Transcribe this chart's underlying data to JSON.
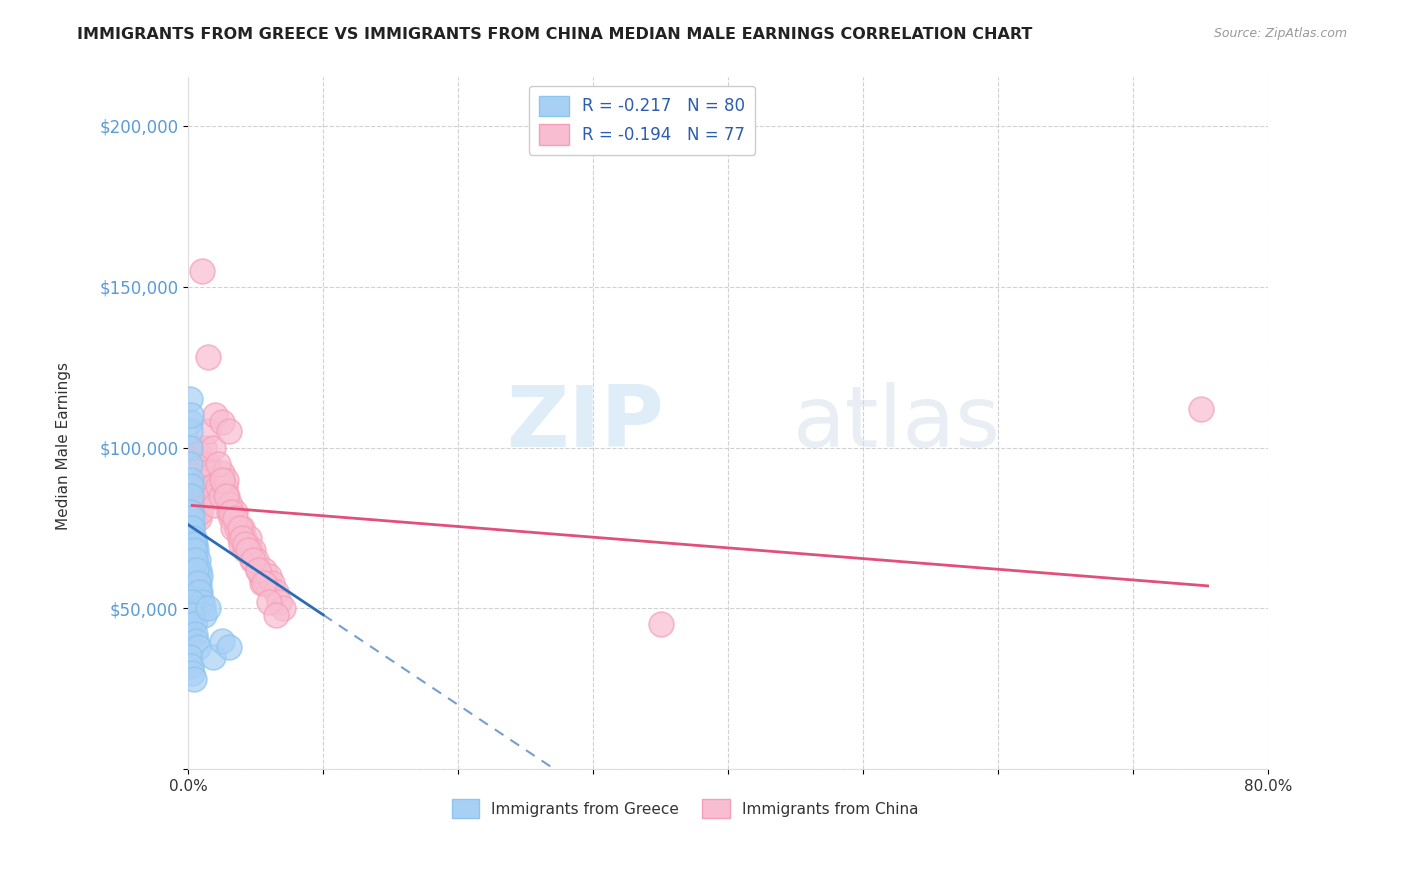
{
  "title": "IMMIGRANTS FROM GREECE VS IMMIGRANTS FROM CHINA MEDIAN MALE EARNINGS CORRELATION CHART",
  "source": "Source: ZipAtlas.com",
  "ylabel": "Median Male Earnings",
  "y_ticks": [
    0,
    50000,
    100000,
    150000,
    200000
  ],
  "y_tick_labels": [
    "",
    "$50,000",
    "$100,000",
    "$150,000",
    "$200,000"
  ],
  "xlim": [
    0.0,
    0.8
  ],
  "ylim": [
    0,
    215000
  ],
  "greece_R": -0.217,
  "greece_N": 80,
  "china_R": -0.194,
  "china_N": 77,
  "greece_color": "#8EC4F0",
  "greece_face_color": "#A8D0F5",
  "china_color": "#F5A0B8",
  "china_face_color": "#F8BDD0",
  "greece_line_color": "#2B6CB8",
  "china_line_color": "#E0507A",
  "watermark_zip": "ZIP",
  "watermark_atlas": "atlas",
  "legend_label_greece": "Immigrants from Greece",
  "legend_label_china": "Immigrants from China",
  "greece_scatter_x": [
    0.0005,
    0.0008,
    0.001,
    0.001,
    0.0012,
    0.0015,
    0.0015,
    0.0015,
    0.002,
    0.002,
    0.002,
    0.002,
    0.0022,
    0.0025,
    0.0025,
    0.003,
    0.003,
    0.003,
    0.003,
    0.0035,
    0.0035,
    0.004,
    0.004,
    0.004,
    0.004,
    0.0045,
    0.005,
    0.005,
    0.005,
    0.005,
    0.006,
    0.006,
    0.006,
    0.007,
    0.007,
    0.007,
    0.008,
    0.008,
    0.009,
    0.009,
    0.001,
    0.0012,
    0.0014,
    0.0016,
    0.0018,
    0.002,
    0.0022,
    0.0024,
    0.003,
    0.003,
    0.0035,
    0.004,
    0.0045,
    0.005,
    0.006,
    0.007,
    0.008,
    0.01,
    0.011,
    0.012,
    0.001,
    0.001,
    0.002,
    0.002,
    0.003,
    0.003,
    0.004,
    0.005,
    0.006,
    0.007,
    0.001,
    0.002,
    0.003,
    0.004,
    0.015,
    0.018,
    0.025,
    0.03,
    0.001,
    0.002
  ],
  "greece_scatter_y": [
    75000,
    80000,
    78000,
    73000,
    70000,
    72000,
    65000,
    68000,
    75000,
    72000,
    68000,
    65000,
    62000,
    70000,
    60000,
    75000,
    70000,
    65000,
    60000,
    68000,
    62000,
    72000,
    68000,
    65000,
    60000,
    58000,
    70000,
    65000,
    62000,
    55000,
    68000,
    62000,
    58000,
    65000,
    60000,
    55000,
    62000,
    58000,
    60000,
    55000,
    108000,
    105000,
    100000,
    95000,
    90000,
    88000,
    85000,
    80000,
    78000,
    75000,
    72000,
    70000,
    68000,
    65000,
    62000,
    58000,
    55000,
    52000,
    50000,
    48000,
    45000,
    42000,
    48000,
    45000,
    52000,
    48000,
    45000,
    42000,
    40000,
    38000,
    35000,
    32000,
    30000,
    28000,
    50000,
    35000,
    40000,
    38000,
    115000,
    110000
  ],
  "china_scatter_x": [
    0.003,
    0.005,
    0.006,
    0.007,
    0.008,
    0.009,
    0.01,
    0.011,
    0.012,
    0.013,
    0.014,
    0.015,
    0.016,
    0.017,
    0.018,
    0.019,
    0.02,
    0.022,
    0.024,
    0.025,
    0.027,
    0.028,
    0.029,
    0.03,
    0.031,
    0.032,
    0.033,
    0.035,
    0.036,
    0.038,
    0.039,
    0.04,
    0.041,
    0.042,
    0.043,
    0.045,
    0.046,
    0.047,
    0.048,
    0.05,
    0.052,
    0.054,
    0.055,
    0.056,
    0.058,
    0.06,
    0.062,
    0.065,
    0.067,
    0.07,
    0.005,
    0.008,
    0.01,
    0.012,
    0.015,
    0.018,
    0.022,
    0.025,
    0.028,
    0.032,
    0.035,
    0.038,
    0.04,
    0.042,
    0.044,
    0.048,
    0.052,
    0.056,
    0.06,
    0.065,
    0.01,
    0.015,
    0.02,
    0.025,
    0.03,
    0.75,
    0.35
  ],
  "china_scatter_y": [
    80000,
    78000,
    82000,
    85000,
    78000,
    80000,
    88000,
    90000,
    85000,
    88000,
    92000,
    95000,
    90000,
    92000,
    88000,
    85000,
    82000,
    88000,
    85000,
    92000,
    88000,
    90000,
    85000,
    80000,
    82000,
    78000,
    75000,
    80000,
    75000,
    72000,
    70000,
    75000,
    72000,
    68000,
    70000,
    72000,
    68000,
    65000,
    68000,
    65000,
    62000,
    60000,
    58000,
    62000,
    58000,
    60000,
    58000,
    55000,
    52000,
    50000,
    100000,
    98000,
    95000,
    100000,
    105000,
    100000,
    95000,
    90000,
    85000,
    80000,
    78000,
    75000,
    72000,
    70000,
    68000,
    65000,
    62000,
    58000,
    52000,
    48000,
    155000,
    128000,
    110000,
    108000,
    105000,
    112000,
    45000
  ]
}
